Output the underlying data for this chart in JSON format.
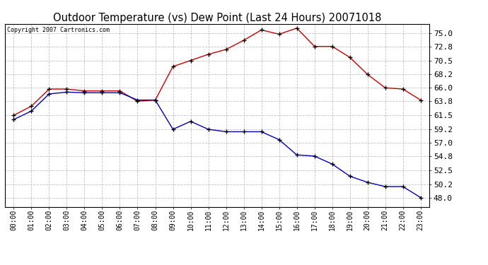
{
  "title": "Outdoor Temperature (vs) Dew Point (Last 24 Hours) 20071018",
  "copyright_text": "Copyright 2007 Cartronics.com",
  "hours": [
    "00:00",
    "01:00",
    "02:00",
    "03:00",
    "04:00",
    "05:00",
    "06:00",
    "07:00",
    "08:00",
    "09:00",
    "10:00",
    "11:00",
    "12:00",
    "13:00",
    "14:00",
    "15:00",
    "16:00",
    "17:00",
    "18:00",
    "19:00",
    "20:00",
    "21:00",
    "22:00",
    "23:00"
  ],
  "temp": [
    61.5,
    63.0,
    65.8,
    65.8,
    65.5,
    65.5,
    65.5,
    63.8,
    64.0,
    69.5,
    70.5,
    71.5,
    72.3,
    73.8,
    75.5,
    74.8,
    75.8,
    72.8,
    72.8,
    71.0,
    68.2,
    66.0,
    65.8,
    64.0
  ],
  "dew": [
    60.8,
    62.2,
    65.0,
    65.3,
    65.2,
    65.2,
    65.2,
    64.0,
    64.0,
    59.2,
    60.5,
    59.2,
    58.8,
    58.8,
    58.8,
    57.5,
    55.0,
    54.8,
    53.5,
    51.5,
    50.5,
    49.8,
    49.8,
    48.0
  ],
  "temp_color": "#cc0000",
  "dew_color": "#0000bb",
  "bg_color": "#ffffff",
  "plot_bg_color": "#ffffff",
  "grid_color": "#bbbbbb",
  "yticks": [
    48.0,
    50.2,
    52.5,
    54.8,
    57.0,
    59.2,
    61.5,
    63.8,
    66.0,
    68.2,
    70.5,
    72.8,
    75.0
  ],
  "ymin": 46.5,
  "ymax": 76.5
}
